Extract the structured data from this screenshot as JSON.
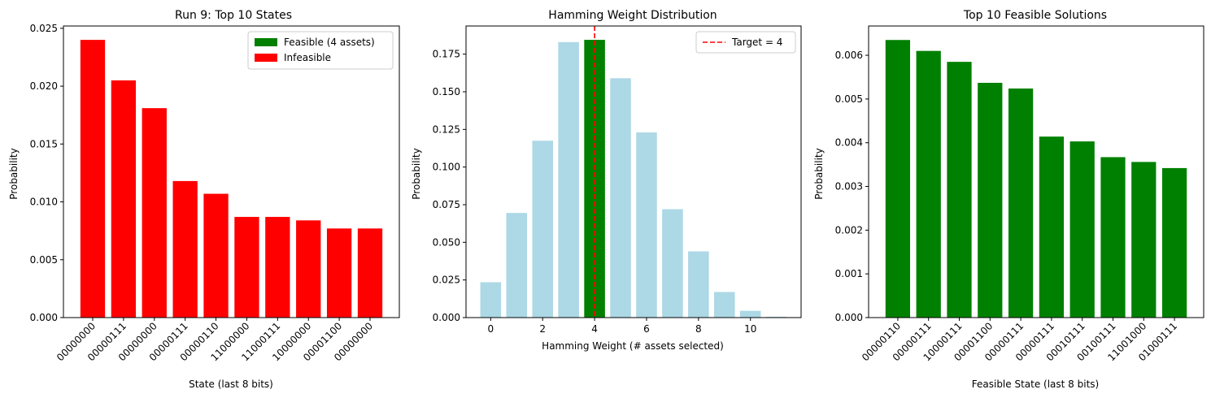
{
  "chart_data": [
    {
      "type": "bar",
      "title": "Run 9: Top 10 States",
      "xlabel": "State (last 8 bits)",
      "ylabel": "Probability",
      "categories": [
        "00000000",
        "00000111",
        "00000000",
        "00000111",
        "00000110",
        "11000000",
        "11000111",
        "10000000",
        "00001100",
        "00000000"
      ],
      "values": [
        0.024,
        0.0205,
        0.0181,
        0.0118,
        0.0107,
        0.0087,
        0.0087,
        0.0084,
        0.0077,
        0.0077
      ],
      "ylim": [
        0,
        0.0252
      ],
      "yticks": [
        0.0,
        0.005,
        0.01,
        0.015,
        0.02,
        0.025
      ],
      "ytick_labels": [
        "0.000",
        "0.005",
        "0.010",
        "0.015",
        "0.020",
        "0.025"
      ],
      "bar_color": "#ff0000",
      "legend": {
        "placement": "top-right",
        "entries": [
          {
            "label": "Feasible (4 assets)",
            "color": "#008000"
          },
          {
            "label": "Infeasible",
            "color": "#ff0000"
          }
        ]
      }
    },
    {
      "type": "bar",
      "title": "Hamming Weight Distribution",
      "xlabel": "Hamming Weight (# assets selected)",
      "ylabel": "Probability",
      "x": [
        0,
        1,
        2,
        3,
        4,
        5,
        6,
        7,
        8,
        9,
        10,
        11
      ],
      "values": [
        0.0235,
        0.0695,
        0.1175,
        0.183,
        0.1845,
        0.159,
        0.123,
        0.072,
        0.044,
        0.017,
        0.0045,
        0.0005
      ],
      "highlight_index": 4,
      "base_color": "#add8e6",
      "highlight_color": "#008000",
      "target_line": {
        "x": 4,
        "color": "#ff0000",
        "label": "Target = 4"
      },
      "xlim": [
        -0.95,
        11.95
      ],
      "ylim": [
        0,
        0.1937
      ],
      "xticks": [
        0,
        2,
        4,
        6,
        8,
        10
      ],
      "xtick_labels": [
        "0",
        "2",
        "4",
        "6",
        "8",
        "10"
      ],
      "yticks": [
        0.0,
        0.025,
        0.05,
        0.075,
        0.1,
        0.125,
        0.15,
        0.175
      ],
      "ytick_labels": [
        "0.000",
        "0.025",
        "0.050",
        "0.075",
        "0.100",
        "0.125",
        "0.150",
        "0.175"
      ],
      "legend": {
        "placement": "top-right"
      }
    },
    {
      "type": "bar",
      "title": "Top 10 Feasible Solutions",
      "xlabel": "Feasible State (last 8 bits)",
      "ylabel": "Probability",
      "categories": [
        "00000110",
        "00000111",
        "10000111",
        "00001100",
        "00000111",
        "00000111",
        "00010111",
        "00100111",
        "11001000",
        "01000111"
      ],
      "values": [
        0.00635,
        0.0061,
        0.00585,
        0.00537,
        0.00524,
        0.00414,
        0.00403,
        0.00367,
        0.00356,
        0.00342
      ],
      "ylim": [
        0,
        0.00667
      ],
      "yticks": [
        0.0,
        0.001,
        0.002,
        0.003,
        0.004,
        0.005,
        0.006
      ],
      "ytick_labels": [
        "0.000",
        "0.001",
        "0.002",
        "0.003",
        "0.004",
        "0.005",
        "0.006"
      ],
      "bar_color": "#008000"
    }
  ]
}
